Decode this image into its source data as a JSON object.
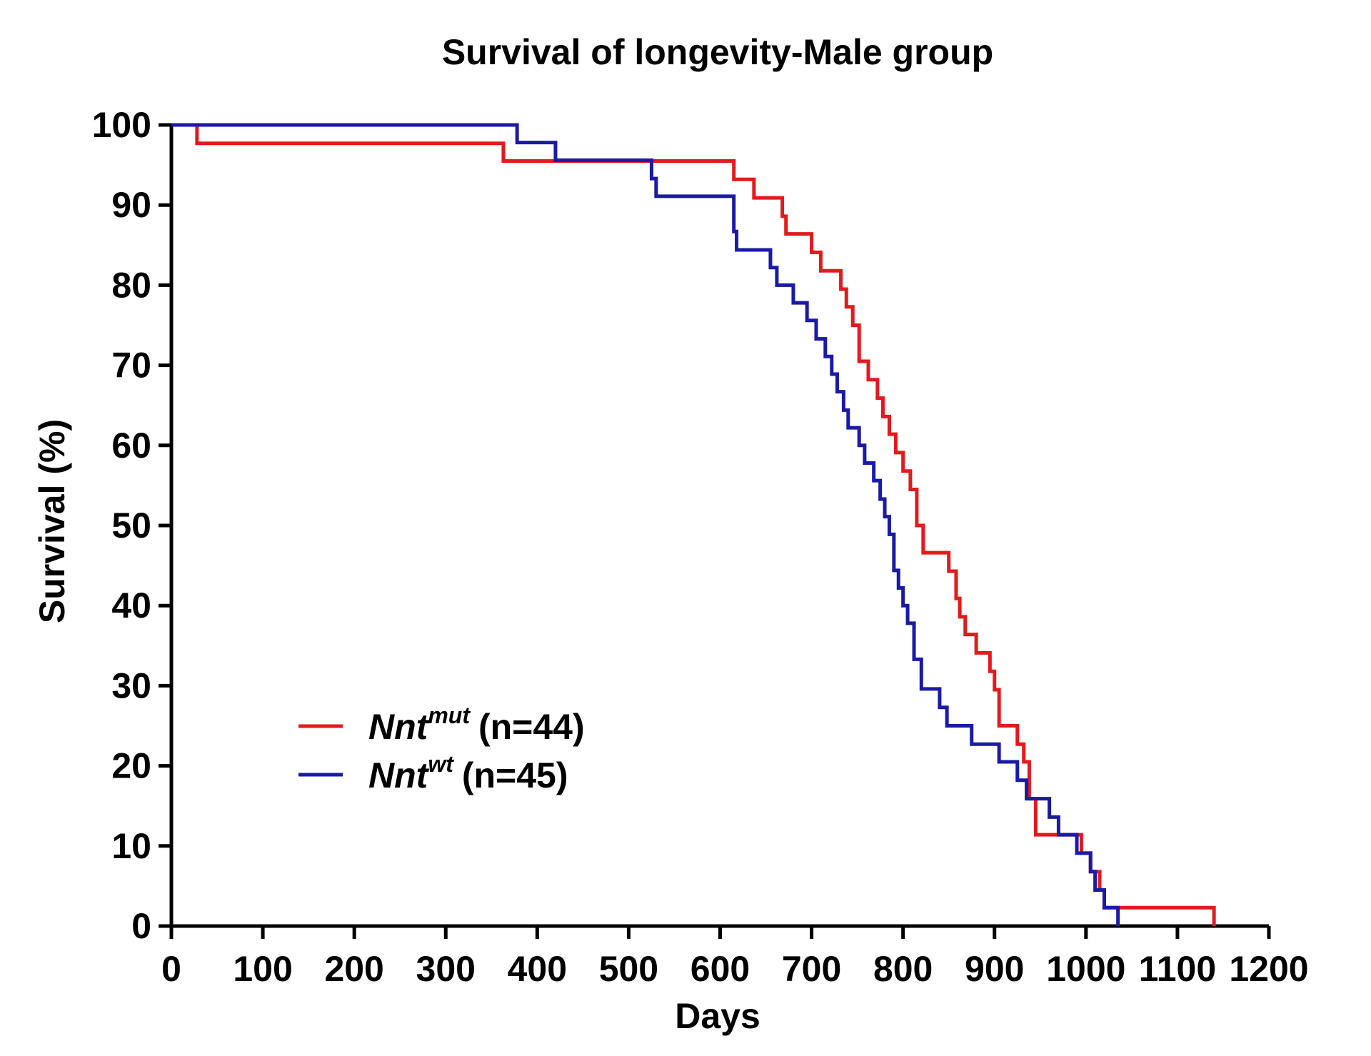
{
  "chart_data": {
    "type": "line",
    "title": "Survival of longevity-Male group",
    "xlabel": "Days",
    "ylabel": "Survival (%)",
    "xlim": [
      0,
      1200
    ],
    "ylim": [
      0,
      100
    ],
    "xticks": [
      0,
      100,
      200,
      300,
      400,
      500,
      600,
      700,
      800,
      900,
      1000,
      1100,
      1200
    ],
    "yticks": [
      0,
      10,
      20,
      30,
      40,
      50,
      60,
      70,
      80,
      90,
      100
    ],
    "grid": false,
    "legend_position": "lower-left",
    "series": [
      {
        "legend_base": "Nnt",
        "legend_sup": "mut",
        "legend_suffix": "(n=44)",
        "color": "#e31a1c",
        "x": [
          0,
          28,
          363,
          420,
          615,
          637,
          668,
          672,
          700,
          710,
          718,
          732,
          738,
          745,
          752,
          762,
          772,
          778,
          785,
          792,
          800,
          808,
          815,
          822,
          840,
          850,
          858,
          862,
          868,
          880,
          895,
          900,
          905,
          925,
          932,
          938,
          945,
          995,
          1005,
          1015,
          1020,
          1030,
          1140
        ],
        "y": [
          100,
          97.7,
          95.5,
          95.5,
          93.2,
          90.9,
          88.6,
          86.4,
          84.1,
          81.8,
          81.8,
          79.5,
          77.3,
          75.0,
          70.5,
          68.2,
          65.9,
          63.6,
          61.4,
          59.1,
          56.8,
          54.5,
          50.0,
          46.6,
          46.6,
          44.3,
          40.9,
          38.6,
          36.4,
          34.1,
          31.8,
          29.5,
          25.0,
          22.7,
          20.5,
          15.9,
          11.4,
          9.1,
          6.8,
          4.5,
          2.3,
          2.3,
          0
        ]
      },
      {
        "legend_base": "Nnt",
        "legend_sup": "wt",
        "legend_suffix": "(n=45)",
        "color": "#1a1aa6",
        "x": [
          0,
          378,
          420,
          525,
          530,
          615,
          618,
          655,
          662,
          680,
          695,
          705,
          715,
          722,
          728,
          735,
          740,
          752,
          758,
          768,
          775,
          780,
          785,
          790,
          795,
          800,
          805,
          812,
          820,
          840,
          848,
          875,
          895,
          905,
          925,
          935,
          945,
          960,
          970,
          990,
          1005,
          1010,
          1020,
          1035
        ],
        "y": [
          100,
          97.8,
          95.6,
          93.3,
          91.1,
          86.7,
          84.4,
          82.2,
          80.0,
          77.8,
          75.6,
          73.3,
          71.1,
          68.9,
          66.7,
          64.4,
          62.2,
          60.0,
          57.8,
          55.6,
          53.3,
          51.1,
          48.9,
          44.4,
          42.2,
          40.0,
          37.8,
          33.3,
          29.6,
          27.3,
          25.0,
          22.7,
          22.7,
          20.5,
          18.2,
          15.9,
          15.9,
          13.6,
          11.4,
          9.1,
          6.8,
          4.5,
          2.3,
          0
        ]
      }
    ]
  }
}
